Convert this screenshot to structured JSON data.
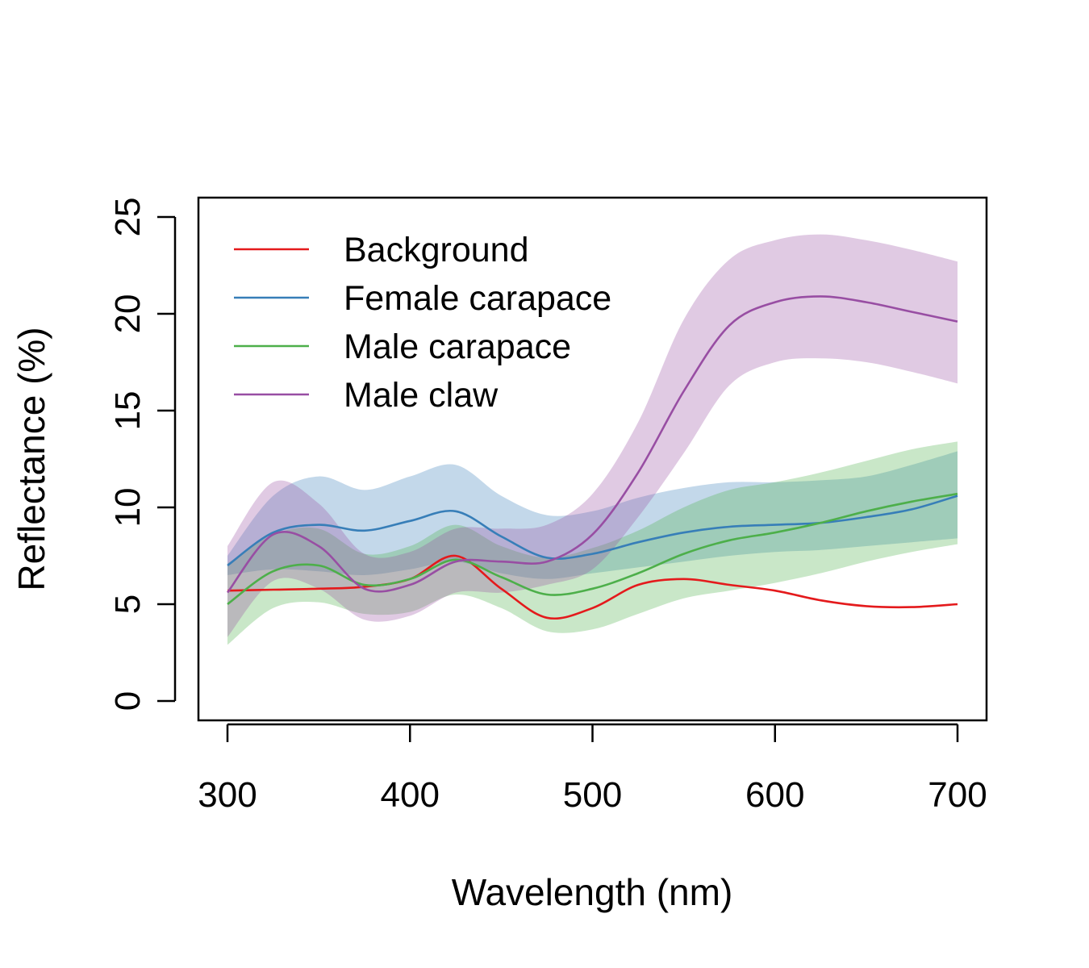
{
  "chart_data": {
    "type": "line",
    "xlabel": "Wavelength (nm)",
    "ylabel": "Reflectance (%)",
    "xlim": [
      300,
      700
    ],
    "ylim": [
      0,
      25
    ],
    "xticks": [
      "300",
      "400",
      "500",
      "600",
      "700"
    ],
    "yticks": [
      "0",
      "5",
      "10",
      "15",
      "20",
      "25"
    ],
    "legend_position": "top-left",
    "grid": false,
    "x": [
      300,
      325,
      350,
      375,
      400,
      425,
      450,
      475,
      500,
      525,
      550,
      575,
      600,
      625,
      650,
      675,
      700
    ],
    "series": [
      {
        "name": "Background",
        "color": "#e41a1c",
        "values": [
          5.7,
          5.75,
          5.8,
          5.9,
          6.3,
          7.5,
          5.8,
          4.3,
          4.8,
          6.0,
          6.3,
          6.0,
          5.7,
          5.2,
          4.9,
          4.85,
          5.0
        ],
        "lower": null,
        "upper": null
      },
      {
        "name": "Female carapace",
        "color": "#377eb8",
        "values": [
          7.0,
          8.7,
          9.1,
          8.8,
          9.3,
          9.8,
          8.5,
          7.4,
          7.6,
          8.2,
          8.7,
          9.0,
          9.1,
          9.2,
          9.5,
          9.9,
          10.6
        ],
        "lower": [
          6.5,
          6.8,
          6.7,
          6.5,
          6.8,
          7.2,
          6.6,
          6.3,
          6.6,
          6.9,
          7.2,
          7.5,
          7.7,
          7.8,
          8.0,
          8.2,
          8.4
        ],
        "upper": [
          7.5,
          10.6,
          11.6,
          10.9,
          11.6,
          12.2,
          10.6,
          9.6,
          9.8,
          10.5,
          11.0,
          11.3,
          11.3,
          11.4,
          11.6,
          12.2,
          12.9
        ]
      },
      {
        "name": "Male carapace",
        "color": "#4daf4a",
        "values": [
          5.0,
          6.7,
          7.0,
          6.0,
          6.3,
          7.3,
          6.4,
          5.5,
          5.8,
          6.6,
          7.6,
          8.3,
          8.7,
          9.2,
          9.8,
          10.3,
          10.7
        ],
        "lower": [
          2.9,
          4.8,
          5.1,
          4.5,
          4.6,
          5.5,
          4.8,
          3.6,
          3.7,
          4.5,
          5.3,
          5.7,
          6.1,
          6.6,
          7.2,
          7.7,
          8.1
        ],
        "upper": [
          7.1,
          8.6,
          8.9,
          7.6,
          8.0,
          9.1,
          8.0,
          7.4,
          7.9,
          8.8,
          10.0,
          10.9,
          11.3,
          11.8,
          12.4,
          13.0,
          13.4
        ]
      },
      {
        "name": "Male claw",
        "color": "#984ea3",
        "values": [
          5.6,
          8.6,
          8.0,
          5.8,
          6.0,
          7.2,
          7.2,
          7.2,
          8.6,
          11.8,
          16.0,
          19.4,
          20.6,
          20.9,
          20.6,
          20.1,
          19.6
        ],
        "lower": [
          3.3,
          6.2,
          5.8,
          4.2,
          4.4,
          5.6,
          5.6,
          6.0,
          6.8,
          9.5,
          12.8,
          16.3,
          17.5,
          17.7,
          17.5,
          17.0,
          16.4
        ],
        "upper": [
          8.0,
          11.3,
          10.2,
          7.6,
          7.7,
          8.9,
          8.9,
          9.1,
          10.7,
          14.4,
          19.7,
          22.8,
          23.8,
          24.1,
          23.8,
          23.3,
          22.7
        ]
      }
    ]
  }
}
